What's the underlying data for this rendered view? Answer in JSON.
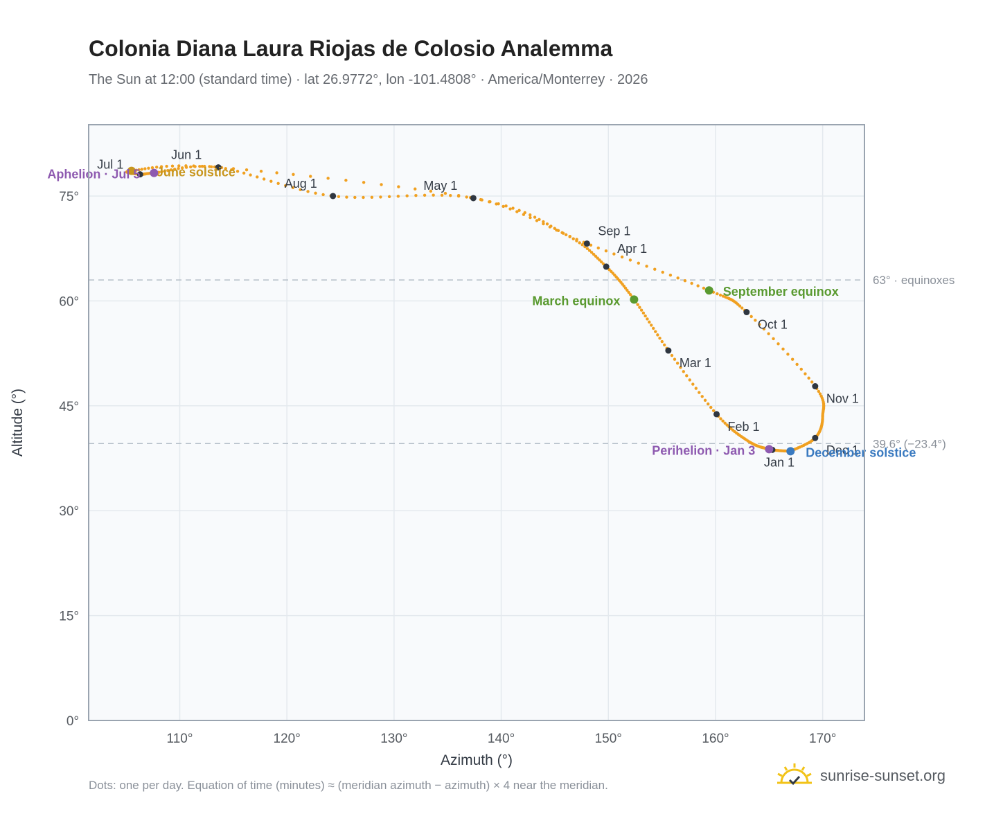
{
  "title": "Colonia Diana Laura Riojas de Colosio Analemma",
  "subtitle": "The Sun at 12:00 (standard time) · lat 26.9772°, lon -101.4808° · America/Monterrey · 2026",
  "footnote": "Dots: one per day. Equation of time (minutes) ≈ (meridian azimuth − azimuth) × 4 near the meridian.",
  "brand": "sunrise-sunset.org",
  "colors": {
    "curve": "#f0a020",
    "month_dot": "#2f3640",
    "equinox": "#5a9a30",
    "december_solstice": "#3a7ac0",
    "june_solstice": "#c8961e",
    "aphelion_perihelion": "#8e5ab0",
    "guide": "#b4bec8",
    "grid": "#e4e9ee",
    "plot_bg": "#f8fafc"
  },
  "chart_data": {
    "type": "scatter",
    "xlabel": "Azimuth (°)",
    "ylabel": "Altitude (°)",
    "xlim": [
      101.5,
      173.9
    ],
    "ylim": [
      0,
      85.2
    ],
    "x_ticks": [
      "110°",
      "120°",
      "130°",
      "140°",
      "150°",
      "160°",
      "170°"
    ],
    "x_tick_values": [
      110,
      120,
      130,
      140,
      150,
      160,
      170
    ],
    "y_ticks": [
      "0°",
      "15°",
      "30°",
      "45°",
      "60°",
      "75°"
    ],
    "y_tick_values": [
      0,
      15,
      30,
      45,
      60,
      75
    ],
    "grid": true,
    "reference_lines": [
      {
        "y": 63.0,
        "label": "63° · equinoxes"
      },
      {
        "y": 39.6,
        "label": "39.6° (−23.4°)"
      }
    ],
    "curve_anchors": [
      [
        167.0,
        38.5
      ],
      [
        169.3,
        40.4
      ],
      [
        170.0,
        43.5
      ],
      [
        169.3,
        47.8
      ],
      [
        162.9,
        58.4
      ],
      [
        159.4,
        61.5
      ],
      [
        148.0,
        68.2
      ],
      [
        137.4,
        74.7
      ],
      [
        124.3,
        75.0
      ],
      [
        113.6,
        79.1
      ],
      [
        107.6,
        78.3
      ],
      [
        106.3,
        78.1
      ],
      [
        105.5,
        78.6
      ],
      [
        113.6,
        79.1
      ],
      [
        137.4,
        74.7
      ],
      [
        146.0,
        69.5
      ],
      [
        149.8,
        64.9
      ],
      [
        152.4,
        60.2
      ],
      [
        155.6,
        52.9
      ],
      [
        160.1,
        43.8
      ],
      [
        163.0,
        40.0
      ],
      [
        165.0,
        38.8
      ],
      [
        167.0,
        38.5
      ]
    ],
    "month_markers": [
      {
        "label": "Jan 1",
        "x": 165.3,
        "y": 38.7
      },
      {
        "label": "Feb 1",
        "x": 160.1,
        "y": 43.8
      },
      {
        "label": "Mar 1",
        "x": 155.6,
        "y": 52.9
      },
      {
        "label": "Apr 1",
        "x": 149.8,
        "y": 64.9
      },
      {
        "label": "May 1",
        "x": 137.4,
        "y": 74.7
      },
      {
        "label": "Jun 1",
        "x": 113.6,
        "y": 79.1
      },
      {
        "label": "Jul 1",
        "x": 106.3,
        "y": 78.1
      },
      {
        "label": "Aug 1",
        "x": 124.3,
        "y": 75.0
      },
      {
        "label": "Sep 1",
        "x": 148.0,
        "y": 68.2
      },
      {
        "label": "Oct 1",
        "x": 162.9,
        "y": 58.4
      },
      {
        "label": "Nov 1",
        "x": 169.3,
        "y": 47.8
      },
      {
        "label": "Dec 1",
        "x": 169.3,
        "y": 40.4
      }
    ],
    "events": [
      {
        "label": "March equinox",
        "x": 152.4,
        "y": 60.2,
        "color_key": "equinox"
      },
      {
        "label": "September equinox",
        "x": 159.4,
        "y": 61.5,
        "color_key": "equinox"
      },
      {
        "label": "December solstice",
        "x": 167.0,
        "y": 38.5,
        "color_key": "december_solstice"
      },
      {
        "label": "June solstice",
        "x": 105.5,
        "y": 78.6,
        "color_key": "june_solstice"
      },
      {
        "label": "Aphelion · Jul 5",
        "x": 107.6,
        "y": 78.3,
        "color_key": "aphelion_perihelion"
      },
      {
        "label": "Perihelion · Jan 3",
        "x": 165.0,
        "y": 38.8,
        "color_key": "aphelion_perihelion"
      }
    ]
  }
}
